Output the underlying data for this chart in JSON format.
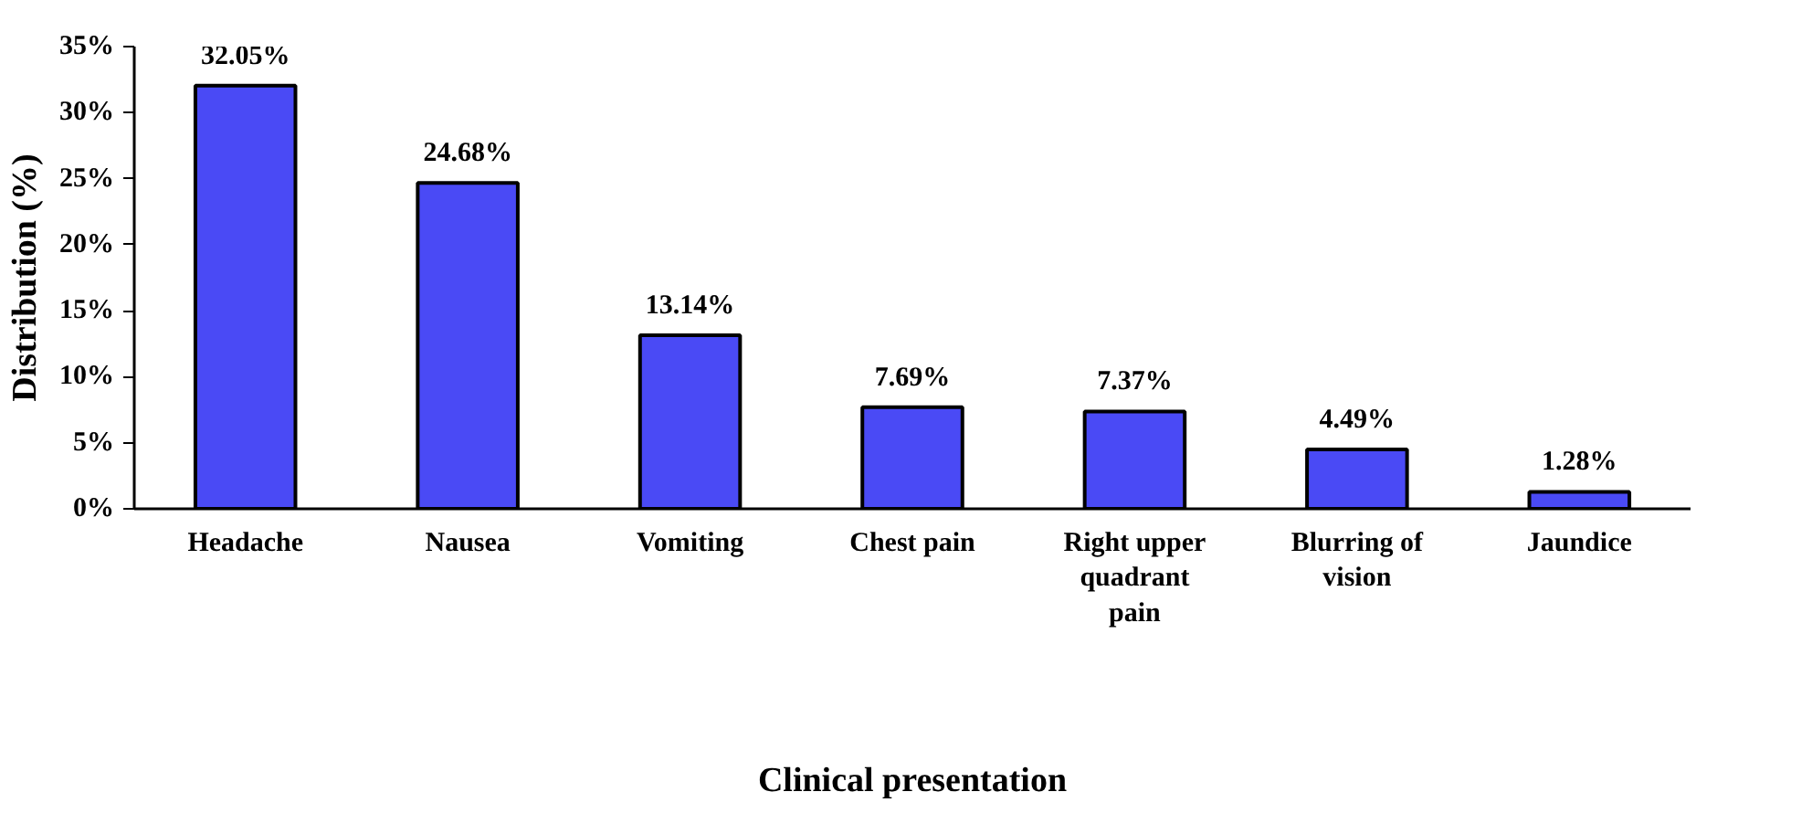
{
  "chart_data": {
    "type": "bar",
    "xlabel": "Clinical presentation",
    "ylabel": "Distribution (%)",
    "categories": [
      "Headache",
      "Nausea",
      "Vomiting",
      "Chest pain",
      "Right upper quadrant pain",
      "Blurring of vision",
      "Jaundice"
    ],
    "values": [
      32.05,
      24.68,
      13.14,
      7.69,
      7.37,
      4.49,
      1.28
    ],
    "value_labels": [
      "32.05%",
      "24.68%",
      "13.14%",
      "7.69%",
      "7.37%",
      "4.49%",
      "1.28%"
    ],
    "color": "#4a4af5",
    "ylim": [
      0,
      35
    ],
    "yticks": [
      {
        "value": 0,
        "label": "0%"
      },
      {
        "value": 5,
        "label": "5%"
      },
      {
        "value": 10,
        "label": "10%"
      },
      {
        "value": 15,
        "label": "15%"
      },
      {
        "value": 20,
        "label": "20%"
      },
      {
        "value": 25,
        "label": "25%"
      },
      {
        "value": 30,
        "label": "30%"
      },
      {
        "value": 35,
        "label": "35%"
      }
    ],
    "grid": false
  }
}
